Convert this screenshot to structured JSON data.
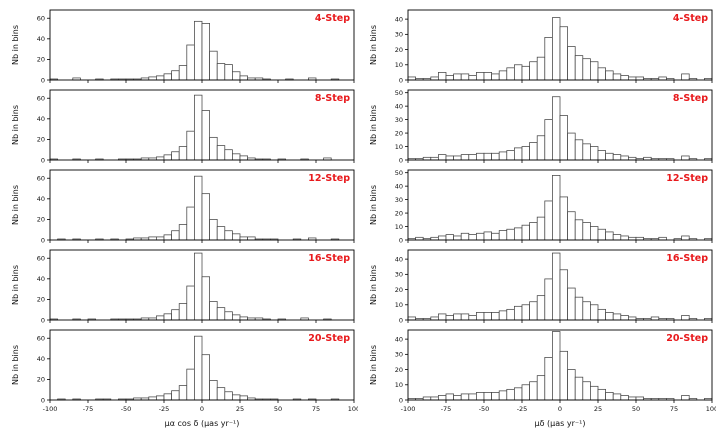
{
  "figure": {
    "title": "",
    "ylabel": "Nb in bins",
    "xlabel_left": "μα cos δ (μas yr⁻¹)",
    "xlabel_right": "μδ (μas yr⁻¹)",
    "step_labels": [
      "4-Step",
      "8-Step",
      "12-Step",
      "16-Step",
      "20-Step"
    ],
    "label_color": "#e8191c",
    "axis_color": "#000000",
    "bar_stroke_color": "#444444"
  },
  "chart_data": [
    {
      "type": "bar",
      "label": "4-Step",
      "column": "left",
      "bin_start": -100,
      "bin_width": 5,
      "values": [
        1,
        0,
        0,
        2,
        0,
        0,
        1,
        0,
        1,
        1,
        1,
        1,
        2,
        3,
        4,
        6,
        9,
        14,
        34,
        57,
        55,
        28,
        16,
        15,
        8,
        4,
        2,
        2,
        1,
        0,
        0,
        1,
        0,
        0,
        2,
        0,
        0,
        1,
        0,
        0
      ],
      "ylim": [
        0,
        68
      ],
      "yticks": [
        0,
        20,
        40,
        60
      ],
      "xticks": [
        -100,
        -75,
        -50,
        -25,
        0,
        25,
        50,
        75,
        100
      ],
      "ylabel": "Nb in bins",
      "xlabel": "",
      "show_xticklabels": false
    },
    {
      "type": "bar",
      "label": "4-Step",
      "column": "right",
      "bin_start": -100,
      "bin_width": 5,
      "values": [
        2,
        1,
        1,
        2,
        5,
        3,
        4,
        4,
        3,
        5,
        5,
        4,
        6,
        8,
        10,
        9,
        12,
        15,
        28,
        41,
        35,
        22,
        16,
        14,
        12,
        8,
        6,
        4,
        3,
        2,
        2,
        1,
        1,
        2,
        1,
        0,
        4,
        1,
        0,
        1
      ],
      "ylim": [
        0,
        46
      ],
      "yticks": [
        0,
        10,
        20,
        30,
        40
      ],
      "xticks": [
        -100,
        -75,
        -50,
        -25,
        0,
        25,
        50,
        75,
        100
      ],
      "ylabel": "Nb in bins",
      "xlabel": "",
      "show_xticklabels": false
    },
    {
      "type": "bar",
      "label": "8-Step",
      "column": "left",
      "bin_start": -100,
      "bin_width": 5,
      "values": [
        1,
        0,
        0,
        1,
        0,
        0,
        1,
        0,
        0,
        1,
        1,
        1,
        2,
        2,
        3,
        5,
        8,
        13,
        28,
        63,
        48,
        22,
        14,
        10,
        6,
        4,
        2,
        1,
        1,
        0,
        1,
        0,
        0,
        1,
        0,
        0,
        2,
        0,
        0,
        0
      ],
      "ylim": [
        0,
        68
      ],
      "yticks": [
        0,
        20,
        40,
        60
      ],
      "xticks": [
        -100,
        -75,
        -50,
        -25,
        0,
        25,
        50,
        75,
        100
      ],
      "ylabel": "Nb in bins",
      "xlabel": "",
      "show_xticklabels": false
    },
    {
      "type": "bar",
      "label": "8-Step",
      "column": "right",
      "bin_start": -100,
      "bin_width": 5,
      "values": [
        1,
        1,
        2,
        2,
        4,
        3,
        3,
        4,
        4,
        5,
        5,
        5,
        6,
        7,
        9,
        10,
        13,
        18,
        30,
        47,
        33,
        20,
        15,
        12,
        10,
        7,
        5,
        4,
        3,
        2,
        1,
        2,
        1,
        1,
        1,
        0,
        3,
        1,
        0,
        1
      ],
      "ylim": [
        0,
        52
      ],
      "yticks": [
        0,
        10,
        20,
        30,
        40,
        50
      ],
      "xticks": [
        -100,
        -75,
        -50,
        -25,
        0,
        25,
        50,
        75,
        100
      ],
      "ylabel": "Nb in bins",
      "xlabel": "",
      "show_xticklabels": false
    },
    {
      "type": "bar",
      "label": "12-Step",
      "column": "left",
      "bin_start": -100,
      "bin_width": 5,
      "values": [
        0,
        1,
        0,
        1,
        0,
        0,
        1,
        0,
        1,
        0,
        1,
        2,
        2,
        3,
        3,
        5,
        9,
        15,
        32,
        62,
        45,
        20,
        13,
        9,
        6,
        3,
        3,
        1,
        1,
        1,
        0,
        0,
        1,
        0,
        2,
        0,
        0,
        1,
        0,
        0
      ],
      "ylim": [
        0,
        68
      ],
      "yticks": [
        0,
        20,
        40,
        60
      ],
      "xticks": [
        -100,
        -75,
        -50,
        -25,
        0,
        25,
        50,
        75,
        100
      ],
      "ylabel": "Nb in bins",
      "xlabel": "",
      "show_xticklabels": false
    },
    {
      "type": "bar",
      "label": "12-Step",
      "column": "right",
      "bin_start": -100,
      "bin_width": 5,
      "values": [
        1,
        2,
        1,
        2,
        3,
        4,
        3,
        5,
        4,
        5,
        6,
        5,
        7,
        8,
        9,
        11,
        13,
        17,
        29,
        48,
        32,
        21,
        15,
        13,
        10,
        8,
        6,
        4,
        3,
        2,
        2,
        1,
        1,
        2,
        0,
        1,
        3,
        1,
        0,
        1
      ],
      "ylim": [
        0,
        52
      ],
      "yticks": [
        0,
        10,
        20,
        30,
        40,
        50
      ],
      "xticks": [
        -100,
        -75,
        -50,
        -25,
        0,
        25,
        50,
        75,
        100
      ],
      "ylabel": "Nb in bins",
      "xlabel": "",
      "show_xticklabels": false
    },
    {
      "type": "bar",
      "label": "16-Step",
      "column": "left",
      "bin_start": -100,
      "bin_width": 5,
      "values": [
        1,
        0,
        0,
        1,
        0,
        1,
        0,
        0,
        1,
        1,
        1,
        1,
        2,
        2,
        4,
        6,
        10,
        16,
        33,
        65,
        42,
        18,
        12,
        8,
        5,
        3,
        2,
        2,
        1,
        0,
        1,
        0,
        0,
        2,
        0,
        0,
        1,
        0,
        0,
        0
      ],
      "ylim": [
        0,
        68
      ],
      "yticks": [
        0,
        20,
        40,
        60
      ],
      "xticks": [
        -100,
        -75,
        -50,
        -25,
        0,
        25,
        50,
        75,
        100
      ],
      "ylabel": "Nb in bins",
      "xlabel": "",
      "show_xticklabels": false
    },
    {
      "type": "bar",
      "label": "16-Step",
      "column": "right",
      "bin_start": -100,
      "bin_width": 5,
      "values": [
        2,
        1,
        1,
        2,
        4,
        3,
        4,
        4,
        3,
        5,
        5,
        5,
        6,
        7,
        9,
        10,
        12,
        16,
        27,
        44,
        33,
        21,
        15,
        12,
        10,
        7,
        5,
        4,
        3,
        2,
        1,
        1,
        2,
        1,
        1,
        0,
        3,
        1,
        0,
        1
      ],
      "ylim": [
        0,
        46
      ],
      "yticks": [
        0,
        10,
        20,
        30,
        40
      ],
      "xticks": [
        -100,
        -75,
        -50,
        -25,
        0,
        25,
        50,
        75,
        100
      ],
      "ylabel": "Nb in bins",
      "xlabel": "",
      "show_xticklabels": false
    },
    {
      "type": "bar",
      "label": "20-Step",
      "column": "left",
      "bin_start": -100,
      "bin_width": 5,
      "values": [
        0,
        1,
        0,
        1,
        0,
        0,
        1,
        1,
        0,
        1,
        1,
        2,
        2,
        3,
        4,
        6,
        9,
        14,
        30,
        62,
        44,
        19,
        12,
        8,
        5,
        4,
        2,
        1,
        1,
        1,
        0,
        0,
        1,
        0,
        1,
        0,
        0,
        1,
        0,
        0
      ],
      "ylim": [
        0,
        68
      ],
      "yticks": [
        0,
        20,
        40,
        60
      ],
      "xticks": [
        -100,
        -75,
        -50,
        -25,
        0,
        25,
        50,
        75,
        100
      ],
      "ylabel": "Nb in bins",
      "xlabel": "μα cos δ (μas yr⁻¹)",
      "show_xticklabels": true
    },
    {
      "type": "bar",
      "label": "20-Step",
      "column": "right",
      "bin_start": -100,
      "bin_width": 5,
      "values": [
        1,
        1,
        2,
        2,
        3,
        4,
        3,
        4,
        4,
        5,
        5,
        5,
        6,
        7,
        8,
        10,
        12,
        16,
        28,
        45,
        32,
        20,
        15,
        12,
        9,
        7,
        5,
        4,
        3,
        2,
        2,
        1,
        1,
        1,
        1,
        0,
        3,
        1,
        0,
        1
      ],
      "ylim": [
        0,
        46
      ],
      "yticks": [
        0,
        10,
        20,
        30,
        40
      ],
      "xticks": [
        -100,
        -75,
        -50,
        -25,
        0,
        25,
        50,
        75,
        100
      ],
      "ylabel": "Nb in bins",
      "xlabel": "μδ (μas yr⁻¹)",
      "show_xticklabels": true
    }
  ]
}
